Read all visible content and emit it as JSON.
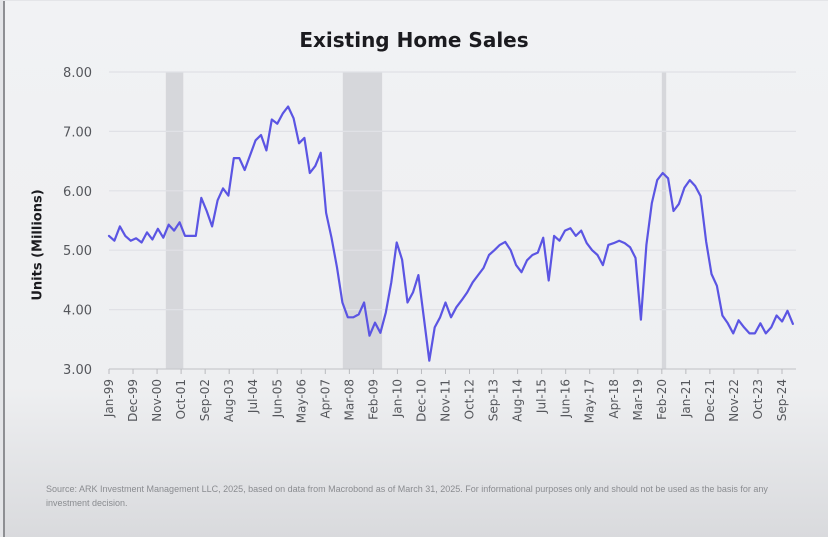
{
  "chart_data": {
    "type": "line",
    "title": "Existing Home Sales",
    "xlabel": "",
    "ylabel": "Units (Millions)",
    "ylim": [
      3.0,
      8.0
    ],
    "yticks": [
      "3.00",
      "4.00",
      "5.00",
      "6.00",
      "7.00",
      "8.00"
    ],
    "grid": true,
    "legend": "none",
    "line_color": "#5b55e3",
    "recession_color": "#d6d7db",
    "x_start": "Jan-99",
    "xticks": [
      "Jan-99",
      "Dec-99",
      "Nov-00",
      "Oct-01",
      "Sep-02",
      "Aug-03",
      "Jul-04",
      "Jun-05",
      "May-06",
      "Apr-07",
      "Mar-08",
      "Feb-09",
      "Jan-10",
      "Dec-10",
      "Nov-11",
      "Oct-12",
      "Sep-13",
      "Aug-14",
      "Jul-15",
      "Jun-16",
      "May-17",
      "Apr-18",
      "Mar-19",
      "Feb-20",
      "Jan-21",
      "Dec-21",
      "Nov-22",
      "Oct-23",
      "Sep-24"
    ],
    "recessions": [
      {
        "start": "Mar-01",
        "end": "Nov-01"
      },
      {
        "start": "Dec-07",
        "end": "Jun-09"
      },
      {
        "start": "Feb-20",
        "end": "Apr-20"
      }
    ],
    "series": [
      {
        "name": "Existing Home Sales",
        "points": [
          [
            "Jan-99",
            5.24
          ],
          [
            "Mar-99",
            5.16
          ],
          [
            "Jun-99",
            5.4
          ],
          [
            "Aug-99",
            5.24
          ],
          [
            "Dec-99",
            5.16
          ],
          [
            "May-00",
            5.2
          ],
          [
            "Sep-00",
            5.13
          ],
          [
            "Feb-01",
            5.3
          ],
          [
            "Apr-01",
            5.18
          ],
          [
            "Jul-01",
            5.36
          ],
          [
            "Sep-01",
            5.21
          ],
          [
            "Nov-01",
            5.43
          ],
          [
            "Jan-02",
            5.33
          ],
          [
            "Apr-02",
            5.47
          ],
          [
            "Jun-02",
            5.24
          ],
          [
            "Jun-02",
            5.24
          ],
          [
            "Aug-02",
            5.24
          ],
          [
            "Oct-02",
            5.88
          ],
          [
            "Dec-02",
            5.66
          ],
          [
            "Mar-03",
            5.4
          ],
          [
            "Jun-03",
            5.84
          ],
          [
            "Aug-03",
            6.04
          ],
          [
            "Oct-03",
            5.92
          ],
          [
            "Dec-03",
            6.55
          ],
          [
            "Feb-04",
            6.55
          ],
          [
            "Mar-04",
            6.35
          ],
          [
            "May-04",
            6.6
          ],
          [
            "Jul-04",
            6.85
          ],
          [
            "Sep-04",
            6.94
          ],
          [
            "Oct-04",
            6.68
          ],
          [
            "Jan-05",
            7.2
          ],
          [
            "Mar-05",
            7.13
          ],
          [
            "May-05",
            7.3
          ],
          [
            "Jul-05",
            7.42
          ],
          [
            "Sep-05",
            7.22
          ],
          [
            "Oct-05",
            6.8
          ],
          [
            "Nov-05",
            6.89
          ],
          [
            "Feb-06",
            6.3
          ],
          [
            "May-06",
            6.42
          ],
          [
            "Aug-06",
            6.64
          ],
          [
            "Oct-06",
            5.63
          ],
          [
            "Dec-06",
            5.21
          ],
          [
            "Feb-07",
            4.71
          ],
          [
            "Jun-07",
            4.12
          ],
          [
            "Aug-07",
            3.87
          ],
          [
            "Nov-07",
            3.87
          ],
          [
            "Feb-08",
            3.92
          ],
          [
            "May-08",
            4.12
          ],
          [
            "Jul-08",
            3.56
          ],
          [
            "Oct-08",
            3.78
          ],
          [
            "Dec-08",
            3.61
          ],
          [
            "Mar-09",
            3.95
          ],
          [
            "Jun-09",
            4.46
          ],
          [
            "Jul-09",
            5.13
          ],
          [
            "Aug-09",
            4.84
          ],
          [
            "Oct-09",
            4.12
          ],
          [
            "Jan-10",
            4.29
          ],
          [
            "Mar-10",
            4.58
          ],
          [
            "Apr-10",
            3.87
          ],
          [
            "Jun-10",
            3.14
          ],
          [
            "Aug-10",
            3.7
          ],
          [
            "Oct-10",
            3.87
          ],
          [
            "Dec-10",
            4.12
          ],
          [
            "Mar-11",
            3.87
          ],
          [
            "May-11",
            4.04
          ],
          [
            "Jul-11",
            4.16
          ],
          [
            "Sep-11",
            4.29
          ],
          [
            "Dec-11",
            4.46
          ],
          [
            "Mar-12",
            4.58
          ],
          [
            "May-12",
            4.7
          ],
          [
            "Aug-12",
            4.92
          ],
          [
            "Nov-12",
            5.0
          ],
          [
            "Feb-13",
            5.09
          ],
          [
            "May-13",
            5.14
          ],
          [
            "Jul-13",
            5.0
          ],
          [
            "Sep-13",
            4.75
          ],
          [
            "Nov-13",
            4.63
          ],
          [
            "Feb-14",
            4.83
          ],
          [
            "Jun-14",
            4.92
          ],
          [
            "Oct-14",
            4.96
          ],
          [
            "Dec-14",
            5.21
          ],
          [
            "Feb-15",
            4.49
          ],
          [
            "Apr-15",
            5.24
          ],
          [
            "Jul-15",
            5.16
          ],
          [
            "Sep-15",
            5.33
          ],
          [
            "Feb-16",
            5.37
          ],
          [
            "Jun-16",
            5.24
          ],
          [
            "Oct-16",
            5.33
          ],
          [
            "Feb-17",
            5.12
          ],
          [
            "May-17",
            5.0
          ],
          [
            "Jul-17",
            4.92
          ],
          [
            "Sep-17",
            4.75
          ],
          [
            "Nov-17",
            5.09
          ],
          [
            "Jan-18",
            5.12
          ],
          [
            "Apr-18",
            5.16
          ],
          [
            "Sep-18",
            5.12
          ],
          [
            "Jan-19",
            5.05
          ],
          [
            "Mar-19",
            4.87
          ],
          [
            "Apr-19",
            3.83
          ],
          [
            "May-19",
            5.09
          ],
          [
            "Jul-19",
            5.79
          ],
          [
            "Aug-19",
            6.18
          ],
          [
            "Oct-19",
            6.3
          ],
          [
            "Nov-19",
            6.21
          ],
          [
            "Feb-20",
            5.66
          ],
          [
            "Apr-20",
            5.78
          ],
          [
            "Jun-20",
            6.05
          ],
          [
            "Aug-20",
            6.18
          ],
          [
            "Sep-20",
            6.08
          ],
          [
            "Oct-20",
            5.91
          ],
          [
            "Dec-20",
            5.15
          ],
          [
            "Feb-21",
            4.6
          ],
          [
            "Apr-21",
            4.4
          ],
          [
            "Jun-21",
            3.9
          ],
          [
            "Jul-21",
            3.77
          ],
          [
            "Sep-21",
            3.6
          ],
          [
            "Nov-21",
            3.82
          ],
          [
            "Jan-22",
            3.7
          ],
          [
            "Apr-22",
            3.6
          ],
          [
            "Jun-22",
            3.6
          ],
          [
            "Aug-22",
            3.77
          ],
          [
            "Oct-22",
            3.6
          ],
          [
            "Dec-22",
            3.7
          ],
          [
            "Feb-23",
            3.9
          ],
          [
            "Mar-23",
            3.8
          ],
          [
            "Apr-23",
            3.98
          ],
          [
            "May-23",
            3.76
          ]
        ]
      }
    ]
  },
  "source_note": "Source: ARK Investment Management LLC, 2025, based on data from Macrobond as of March 31, 2025. For informational purposes only and should not be used as the basis for any investment decision."
}
